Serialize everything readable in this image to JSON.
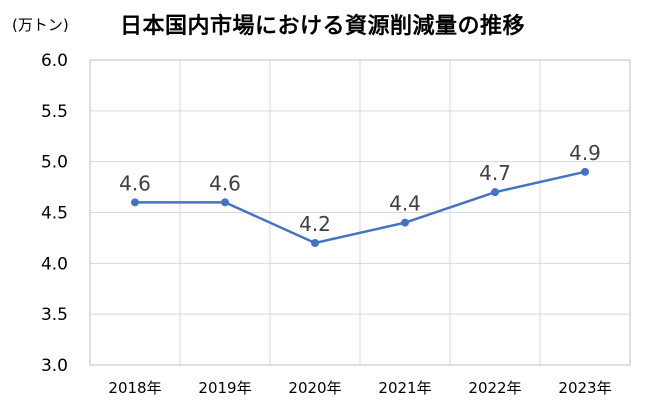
{
  "chart_data": {
    "type": "line",
    "title": "日本国内市場における資源削減量の推移",
    "unit_label": "(万トン)",
    "categories": [
      "2018年",
      "2019年",
      "2020年",
      "2021年",
      "2022年",
      "2023年"
    ],
    "series": [
      {
        "values": [
          4.6,
          4.6,
          4.2,
          4.4,
          4.7,
          4.9
        ],
        "color": "#4472C4"
      }
    ],
    "data_labels": [
      "4.6",
      "4.6",
      "4.2",
      "4.4",
      "4.7",
      "4.9"
    ],
    "y_ticks": [
      "6.0",
      "5.5",
      "5.0",
      "4.5",
      "4.0",
      "3.5",
      "3.0"
    ],
    "ylim": [
      3.0,
      6.0
    ],
    "grid": true,
    "legend": "none"
  }
}
